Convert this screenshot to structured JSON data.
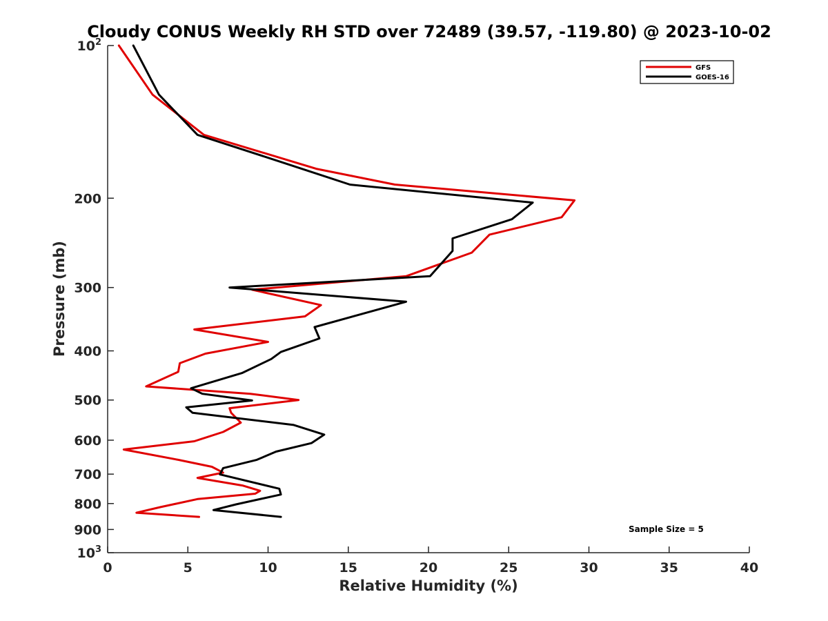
{
  "chart_data": {
    "type": "line",
    "title": "Cloudy CONUS Weekly RH STD over 72489 (39.57, -119.80) @ 2023-10-02",
    "xlabel": "Relative Humidity (%)",
    "ylabel": "Pressure (mb)",
    "xlim": [
      0,
      40
    ],
    "ylim": [
      100,
      1000
    ],
    "y_scale": "log",
    "y_reversed": true,
    "grid": false,
    "legend_position": "top-right",
    "x_ticks": [
      "0",
      "5",
      "10",
      "15",
      "20",
      "25",
      "30",
      "35",
      "40"
    ],
    "y_ticks": [
      {
        "value": 100,
        "base": "10",
        "exp": "2"
      },
      {
        "value": 200,
        "label": "200"
      },
      {
        "value": 300,
        "label": "300"
      },
      {
        "value": 400,
        "label": "400"
      },
      {
        "value": 500,
        "label": "500"
      },
      {
        "value": 600,
        "label": "600"
      },
      {
        "value": 700,
        "label": "700"
      },
      {
        "value": 800,
        "label": "800"
      },
      {
        "value": 900,
        "label": "900"
      },
      {
        "value": 1000,
        "base": "10",
        "exp": "3"
      }
    ],
    "series": [
      {
        "name": "GFS",
        "color": "#e00000",
        "points": [
          [
            0.7,
            100
          ],
          [
            2.8,
            125
          ],
          [
            6.0,
            150
          ],
          [
            13.0,
            175
          ],
          [
            17.9,
            188
          ],
          [
            29.1,
            202
          ],
          [
            28.3,
            218
          ],
          [
            23.8,
            236
          ],
          [
            22.7,
            256
          ],
          [
            18.6,
            285
          ],
          [
            9.0,
            303
          ],
          [
            13.3,
            325
          ],
          [
            12.3,
            342
          ],
          [
            5.4,
            363
          ],
          [
            10.0,
            384
          ],
          [
            6.1,
            405
          ],
          [
            4.5,
            423
          ],
          [
            4.4,
            440
          ],
          [
            2.4,
            470
          ],
          [
            8.9,
            486
          ],
          [
            11.9,
            500
          ],
          [
            7.6,
            519
          ],
          [
            7.7,
            530
          ],
          [
            8.3,
            554
          ],
          [
            7.2,
            578
          ],
          [
            5.4,
            603
          ],
          [
            1.0,
            626
          ],
          [
            4.4,
            656
          ],
          [
            6.5,
            677
          ],
          [
            7.2,
            695
          ],
          [
            5.6,
            712
          ],
          [
            8.4,
            737
          ],
          [
            9.5,
            755
          ],
          [
            9.2,
            765
          ],
          [
            5.6,
            784
          ],
          [
            3.3,
            813
          ],
          [
            1.8,
            834
          ],
          [
            5.7,
            850
          ]
        ]
      },
      {
        "name": "GOES-16",
        "color": "#000000",
        "points": [
          [
            1.6,
            100
          ],
          [
            3.2,
            125
          ],
          [
            5.6,
            150
          ],
          [
            10.9,
            170
          ],
          [
            15.1,
            188
          ],
          [
            26.5,
            204
          ],
          [
            25.2,
            220
          ],
          [
            21.5,
            240
          ],
          [
            21.5,
            254
          ],
          [
            20.1,
            285
          ],
          [
            7.6,
            300
          ],
          [
            18.6,
            320
          ],
          [
            12.9,
            359
          ],
          [
            13.2,
            378
          ],
          [
            10.8,
            402
          ],
          [
            10.2,
            415
          ],
          [
            8.4,
            442
          ],
          [
            5.2,
            474
          ],
          [
            5.9,
            486
          ],
          [
            9.0,
            501
          ],
          [
            4.9,
            517
          ],
          [
            5.3,
            530
          ],
          [
            11.6,
            560
          ],
          [
            13.5,
            585
          ],
          [
            12.7,
            608
          ],
          [
            10.5,
            632
          ],
          [
            9.3,
            656
          ],
          [
            7.2,
            681
          ],
          [
            7.0,
            701
          ],
          [
            10.7,
            748
          ],
          [
            10.8,
            768
          ],
          [
            8.0,
            803
          ],
          [
            6.6,
            824
          ],
          [
            10.8,
            850
          ]
        ]
      }
    ],
    "annotation": "Sample Size = 5"
  }
}
